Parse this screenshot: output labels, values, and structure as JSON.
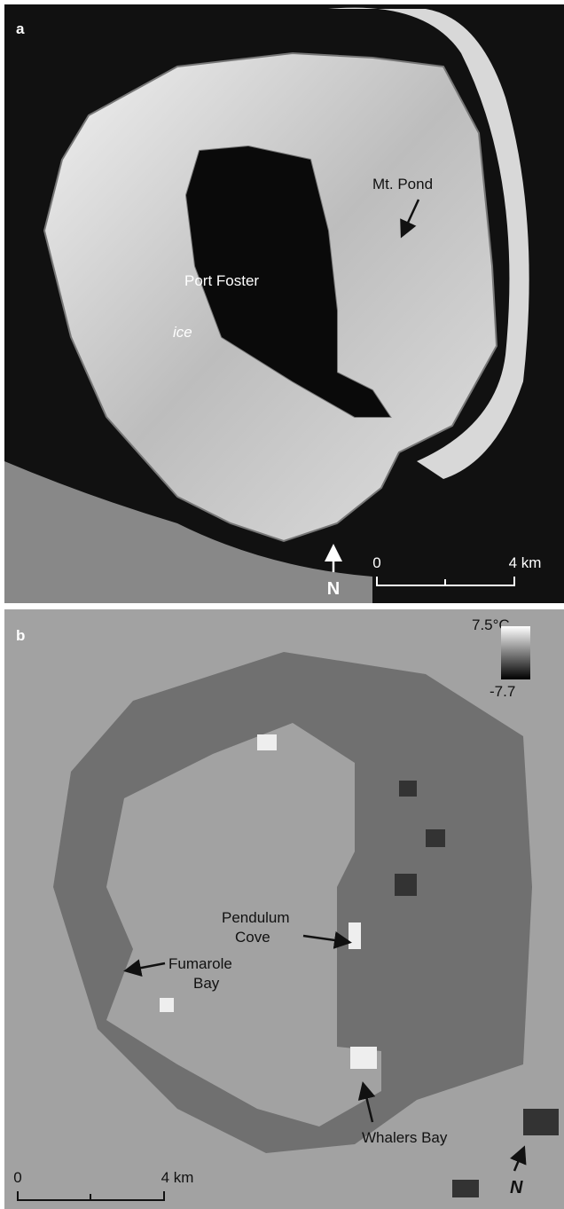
{
  "panels": [
    {
      "label": "a",
      "places": {
        "lagoon": "Port Foster",
        "ice": "ice",
        "mountain": "Mt. Pond"
      },
      "north": "N",
      "scale_bar": {
        "start": "0",
        "end": "4 km"
      }
    },
    {
      "label": "b",
      "colorbar": {
        "max": "7.5°C",
        "min": "-7.7"
      },
      "places": {
        "pendulum": [
          "Pendulum",
          "Cove"
        ],
        "fumarole": [
          "Fumarole",
          "Bay"
        ],
        "whalers": "Whalers Bay"
      },
      "north": "N",
      "scale_bar": {
        "start": "0",
        "end": "4 km"
      }
    }
  ]
}
